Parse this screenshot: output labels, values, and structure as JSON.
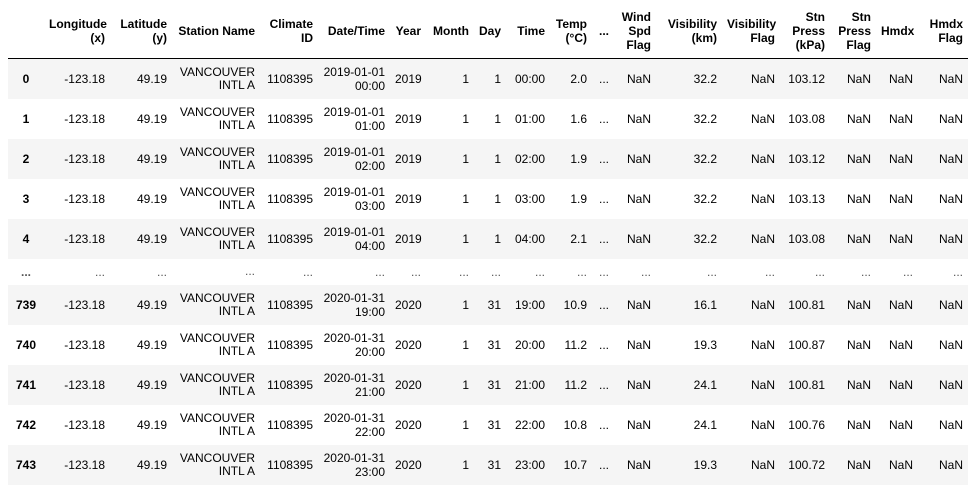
{
  "columns": [
    {
      "key": "index",
      "label": ""
    },
    {
      "key": "lon",
      "label": "Longitude (x)"
    },
    {
      "key": "lat",
      "label": "Latitude (y)"
    },
    {
      "key": "station",
      "label": "Station Name"
    },
    {
      "key": "climate",
      "label": "Climate ID"
    },
    {
      "key": "datetime",
      "label": "Date/Time"
    },
    {
      "key": "year",
      "label": "Year"
    },
    {
      "key": "month",
      "label": "Month"
    },
    {
      "key": "day",
      "label": "Day"
    },
    {
      "key": "time",
      "label": "Time"
    },
    {
      "key": "temp",
      "label": "Temp (°C)"
    },
    {
      "key": "more",
      "label": "..."
    },
    {
      "key": "windflag",
      "label": "Wind Spd Flag"
    },
    {
      "key": "vis",
      "label": "Visibility (km)"
    },
    {
      "key": "visflag",
      "label": "Visibility Flag"
    },
    {
      "key": "press",
      "label": "Stn Press (kPa)"
    },
    {
      "key": "pressflag",
      "label": "Stn Press Flag"
    },
    {
      "key": "hmdx",
      "label": "Hmdx"
    },
    {
      "key": "hmdxflag",
      "label": "Hmdx Flag"
    }
  ],
  "rows": [
    {
      "index": "0",
      "lon": "-123.18",
      "lat": "49.19",
      "station": "VANCOUVER INTL A",
      "climate": "1108395",
      "datetime": "2019-01-01 00:00",
      "year": "2019",
      "month": "1",
      "day": "1",
      "time": "00:00",
      "temp": "2.0",
      "more": "...",
      "windflag": "NaN",
      "vis": "32.2",
      "visflag": "NaN",
      "press": "103.12",
      "pressflag": "NaN",
      "hmdx": "NaN",
      "hmdxflag": "NaN"
    },
    {
      "index": "1",
      "lon": "-123.18",
      "lat": "49.19",
      "station": "VANCOUVER INTL A",
      "climate": "1108395",
      "datetime": "2019-01-01 01:00",
      "year": "2019",
      "month": "1",
      "day": "1",
      "time": "01:00",
      "temp": "1.6",
      "more": "...",
      "windflag": "NaN",
      "vis": "32.2",
      "visflag": "NaN",
      "press": "103.08",
      "pressflag": "NaN",
      "hmdx": "NaN",
      "hmdxflag": "NaN"
    },
    {
      "index": "2",
      "lon": "-123.18",
      "lat": "49.19",
      "station": "VANCOUVER INTL A",
      "climate": "1108395",
      "datetime": "2019-01-01 02:00",
      "year": "2019",
      "month": "1",
      "day": "1",
      "time": "02:00",
      "temp": "1.9",
      "more": "...",
      "windflag": "NaN",
      "vis": "32.2",
      "visflag": "NaN",
      "press": "103.12",
      "pressflag": "NaN",
      "hmdx": "NaN",
      "hmdxflag": "NaN"
    },
    {
      "index": "3",
      "lon": "-123.18",
      "lat": "49.19",
      "station": "VANCOUVER INTL A",
      "climate": "1108395",
      "datetime": "2019-01-01 03:00",
      "year": "2019",
      "month": "1",
      "day": "1",
      "time": "03:00",
      "temp": "1.9",
      "more": "...",
      "windflag": "NaN",
      "vis": "32.2",
      "visflag": "NaN",
      "press": "103.13",
      "pressflag": "NaN",
      "hmdx": "NaN",
      "hmdxflag": "NaN"
    },
    {
      "index": "4",
      "lon": "-123.18",
      "lat": "49.19",
      "station": "VANCOUVER INTL A",
      "climate": "1108395",
      "datetime": "2019-01-01 04:00",
      "year": "2019",
      "month": "1",
      "day": "1",
      "time": "04:00",
      "temp": "2.1",
      "more": "...",
      "windflag": "NaN",
      "vis": "32.2",
      "visflag": "NaN",
      "press": "103.08",
      "pressflag": "NaN",
      "hmdx": "NaN",
      "hmdxflag": "NaN"
    },
    {
      "ellipsis": true,
      "index": "...",
      "lon": "...",
      "lat": "...",
      "station": "...",
      "climate": "...",
      "datetime": "...",
      "year": "...",
      "month": "...",
      "day": "...",
      "time": "...",
      "temp": "...",
      "more": "...",
      "windflag": "...",
      "vis": "...",
      "visflag": "...",
      "press": "...",
      "pressflag": "...",
      "hmdx": "...",
      "hmdxflag": "..."
    },
    {
      "index": "739",
      "lon": "-123.18",
      "lat": "49.19",
      "station": "VANCOUVER INTL A",
      "climate": "1108395",
      "datetime": "2020-01-31 19:00",
      "year": "2020",
      "month": "1",
      "day": "31",
      "time": "19:00",
      "temp": "10.9",
      "more": "...",
      "windflag": "NaN",
      "vis": "16.1",
      "visflag": "NaN",
      "press": "100.81",
      "pressflag": "NaN",
      "hmdx": "NaN",
      "hmdxflag": "NaN"
    },
    {
      "index": "740",
      "lon": "-123.18",
      "lat": "49.19",
      "station": "VANCOUVER INTL A",
      "climate": "1108395",
      "datetime": "2020-01-31 20:00",
      "year": "2020",
      "month": "1",
      "day": "31",
      "time": "20:00",
      "temp": "11.2",
      "more": "...",
      "windflag": "NaN",
      "vis": "19.3",
      "visflag": "NaN",
      "press": "100.87",
      "pressflag": "NaN",
      "hmdx": "NaN",
      "hmdxflag": "NaN"
    },
    {
      "index": "741",
      "lon": "-123.18",
      "lat": "49.19",
      "station": "VANCOUVER INTL A",
      "climate": "1108395",
      "datetime": "2020-01-31 21:00",
      "year": "2020",
      "month": "1",
      "day": "31",
      "time": "21:00",
      "temp": "11.2",
      "more": "...",
      "windflag": "NaN",
      "vis": "24.1",
      "visflag": "NaN",
      "press": "100.81",
      "pressflag": "NaN",
      "hmdx": "NaN",
      "hmdxflag": "NaN"
    },
    {
      "index": "742",
      "lon": "-123.18",
      "lat": "49.19",
      "station": "VANCOUVER INTL A",
      "climate": "1108395",
      "datetime": "2020-01-31 22:00",
      "year": "2020",
      "month": "1",
      "day": "31",
      "time": "22:00",
      "temp": "10.8",
      "more": "...",
      "windflag": "NaN",
      "vis": "24.1",
      "visflag": "NaN",
      "press": "100.76",
      "pressflag": "NaN",
      "hmdx": "NaN",
      "hmdxflag": "NaN"
    },
    {
      "index": "743",
      "lon": "-123.18",
      "lat": "49.19",
      "station": "VANCOUVER INTL A",
      "climate": "1108395",
      "datetime": "2020-01-31 23:00",
      "year": "2020",
      "month": "1",
      "day": "31",
      "time": "23:00",
      "temp": "10.7",
      "more": "...",
      "windflag": "NaN",
      "vis": "19.3",
      "visflag": "NaN",
      "press": "100.72",
      "pressflag": "NaN",
      "hmdx": "NaN",
      "hmdxflag": "NaN"
    }
  ]
}
